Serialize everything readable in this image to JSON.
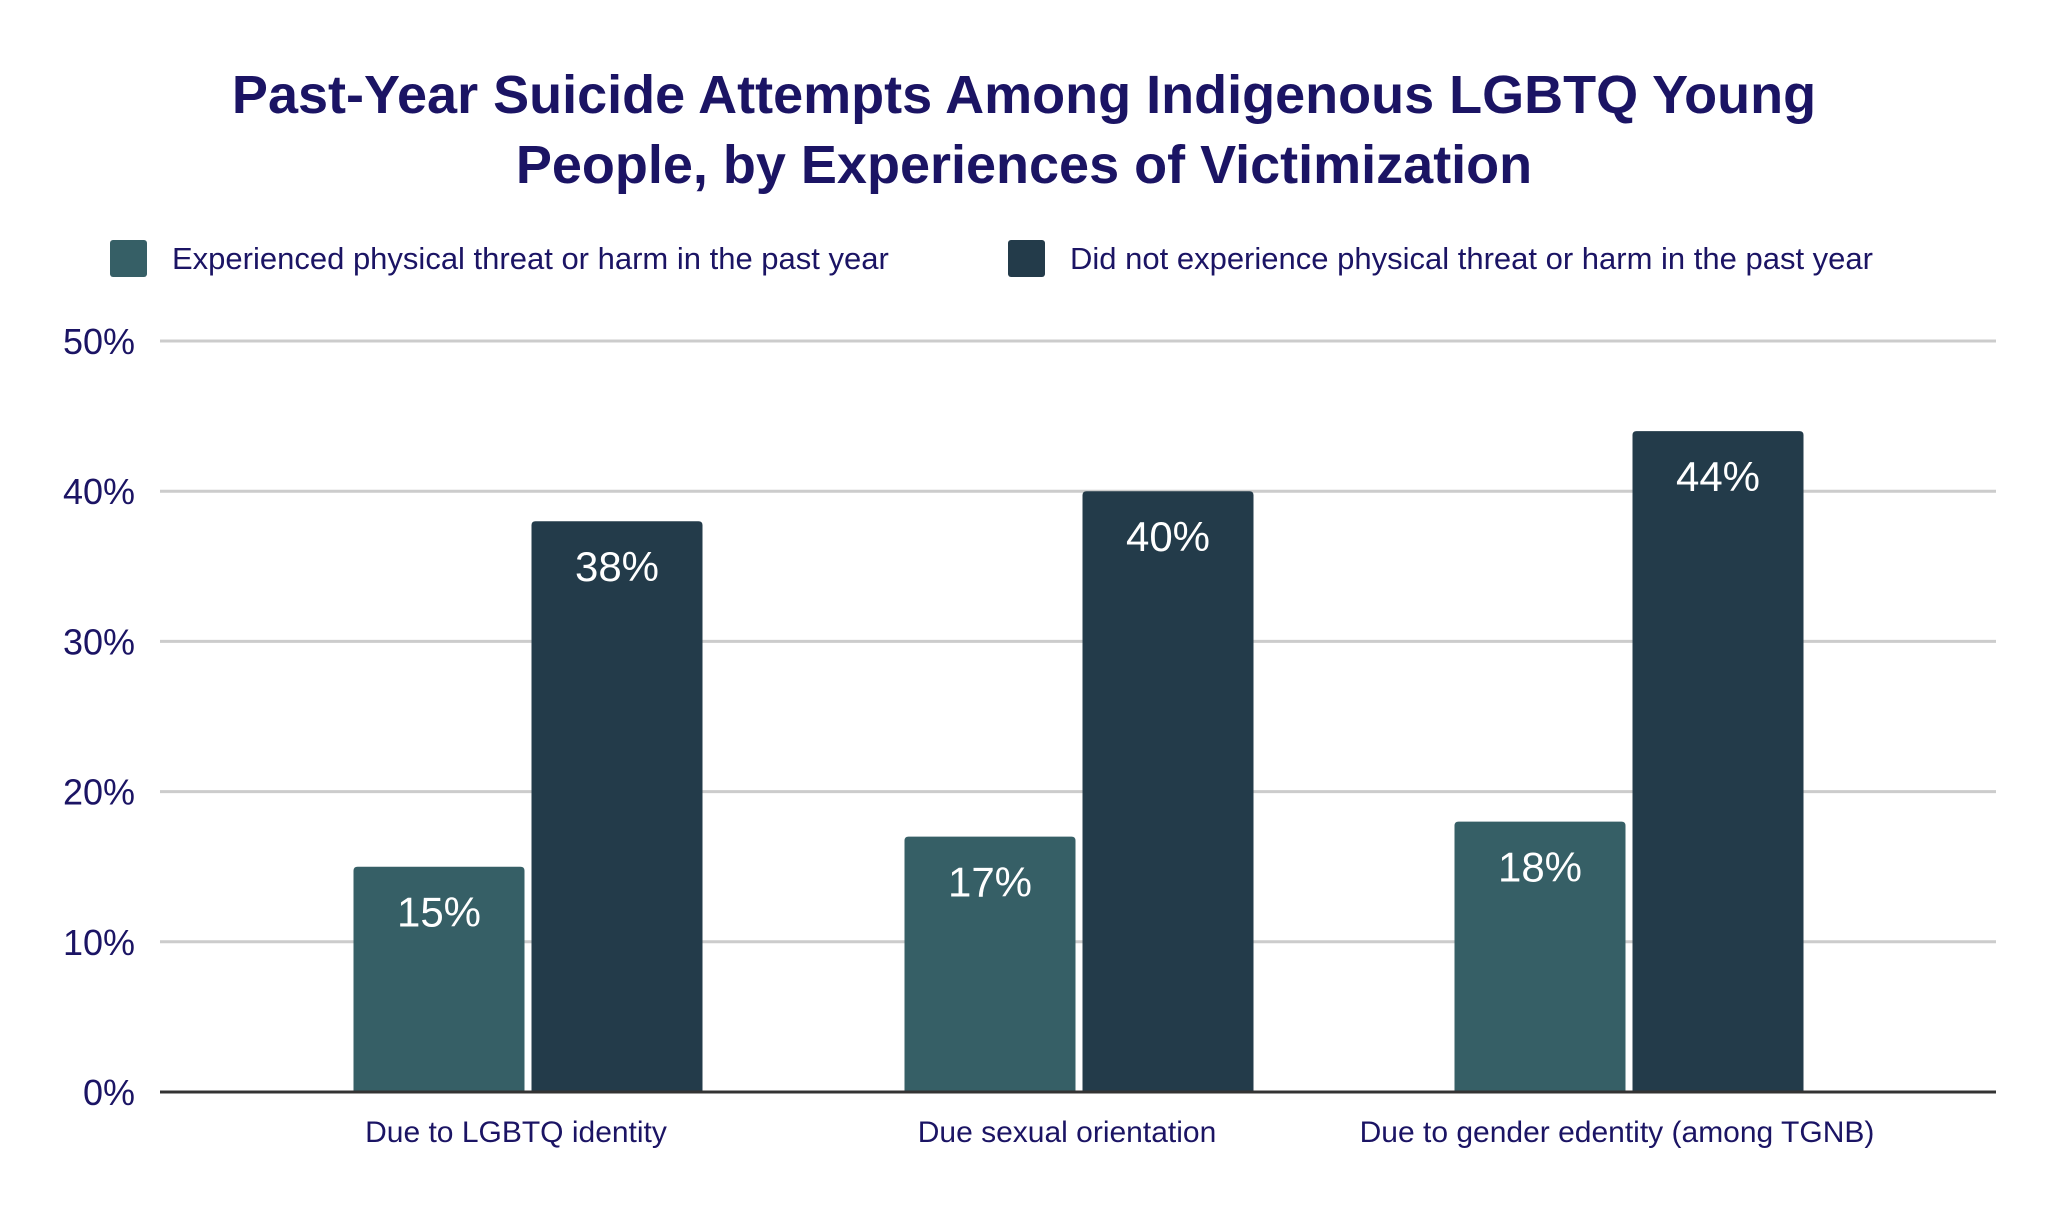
{
  "chart_data": {
    "type": "bar",
    "title": "Past-Year Suicide Attempts Among Indigenous LGBTQ Young People, by Experiences of Victimization",
    "title_lines": [
      "Past-Year Suicide Attempts Among Indigenous LGBTQ Young",
      "People, by Experiences of Victimization"
    ],
    "categories": [
      "Due to LGBTQ identity",
      "Due sexual orientation",
      "Due to gender edentity (among TGNB)"
    ],
    "series": [
      {
        "name": "Experienced physical threat or harm in the past year",
        "values": [
          15,
          17,
          18
        ],
        "labels": [
          "15%",
          "17%",
          "18%"
        ],
        "color": "#365f66"
      },
      {
        "name": "Did not experience physical threat or harm in the past year",
        "values": [
          38,
          40,
          44
        ],
        "labels": [
          "38%",
          "40%",
          "44%"
        ],
        "color": "#233b4a"
      }
    ],
    "ylim": [
      0,
      50
    ],
    "yticks": [
      0,
      10,
      20,
      30,
      40,
      50
    ],
    "ytick_labels": [
      "0%",
      "10%",
      "20%",
      "30%",
      "40%",
      "50%"
    ],
    "xlabel": "",
    "ylabel": "",
    "grid": true,
    "legend_position": "top"
  }
}
